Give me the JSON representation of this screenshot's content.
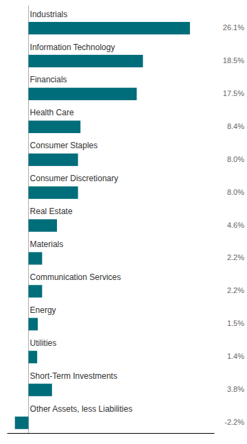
{
  "chart_data": {
    "type": "bar",
    "orientation": "horizontal",
    "categories": [
      "Industrials",
      "Information Technology",
      "Financials",
      "Health Care",
      "Consumer Staples",
      "Consumer Discretionary",
      "Real Estate",
      "Materials",
      "Communication Services",
      "Energy",
      "Utilities",
      "Short-Term Investments",
      "Other Assets, less Liabilities"
    ],
    "values": [
      26.1,
      18.5,
      17.5,
      8.4,
      8.0,
      8.0,
      4.6,
      2.2,
      2.2,
      1.5,
      1.4,
      3.8,
      -2.2
    ],
    "value_labels": [
      "26.1%",
      "18.5%",
      "17.5%",
      "8.4%",
      "8.0%",
      "8.0%",
      "4.6%",
      "2.2%",
      "2.2%",
      "1.5%",
      "1.4%",
      "3.8%",
      "-2.2%"
    ],
    "data_labels": true,
    "color": "#006d7a",
    "xlim": [
      -3.5,
      30
    ],
    "tick_labels": false,
    "grid": false
  }
}
